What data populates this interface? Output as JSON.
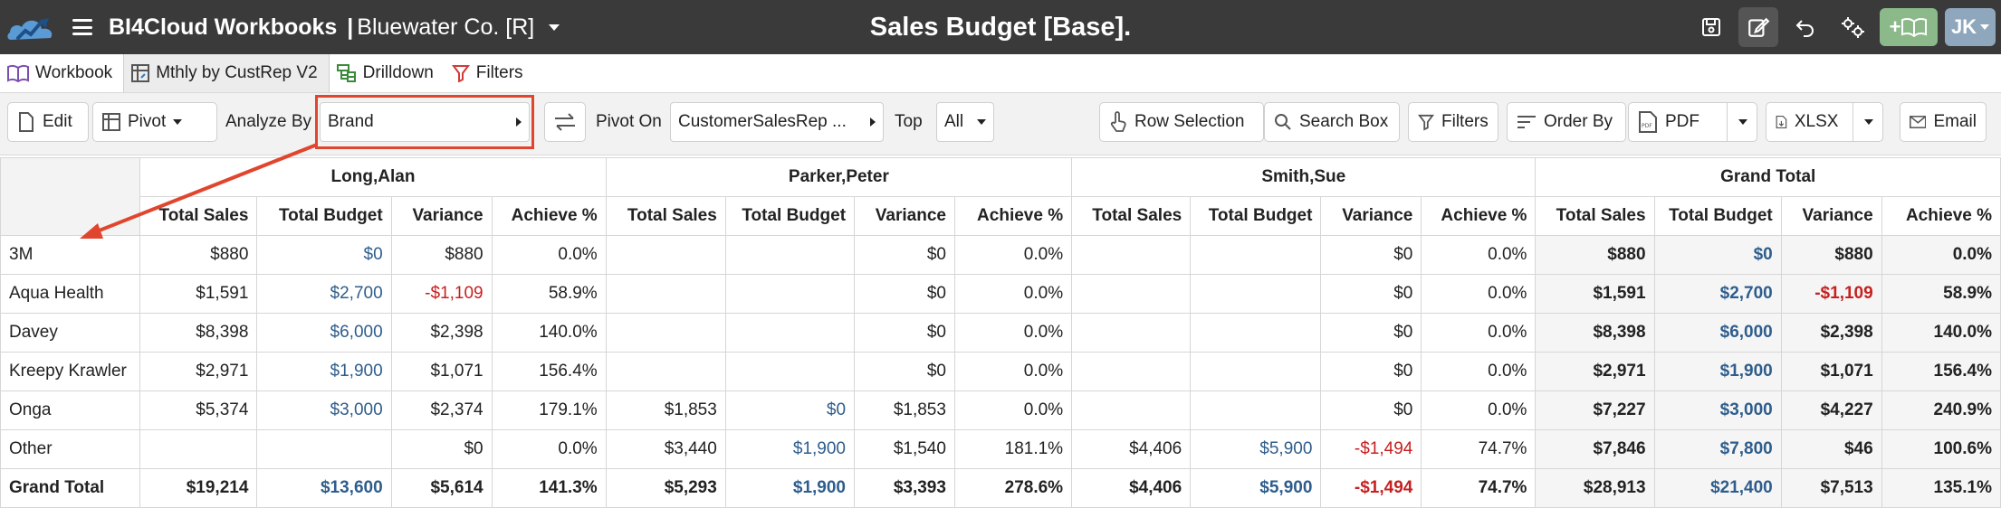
{
  "app": {
    "name": "BI4Cloud Workbooks",
    "separator": "|",
    "company": "Bluewater Co. [R]",
    "page_title": "Sales Budget [Base].",
    "add_workbook_label": "+",
    "user_initials": "JK"
  },
  "tabs": [
    {
      "label": "Workbook",
      "icon": "book-icon"
    },
    {
      "label": "Mthly by CustRep V2",
      "icon": "pivot-icon"
    },
    {
      "label": "Drilldown",
      "icon": "drilldown-icon"
    },
    {
      "label": "Filters",
      "icon": "filter-icon"
    }
  ],
  "toolbar": {
    "edit_label": "Edit",
    "pivot_label": "Pivot",
    "analyze_by_label": "Analyze By",
    "analyze_by_value": "Brand",
    "pivot_on_label": "Pivot On",
    "pivot_on_value": "CustomerSalesRep ...",
    "top_label": "Top",
    "top_value": "All",
    "row_selection_label": "Row Selection",
    "search_box_label": "Search Box",
    "filters_label": "Filters",
    "order_by_label": "Order By",
    "pdf_label": "PDF",
    "xlsx_label": "XLSX",
    "email_label": "Email"
  },
  "colors": {
    "topbar": "#3a3a3a",
    "accent_red": "#e0462e",
    "budget_blue": "#2e5d8c",
    "negative_red": "#c62020",
    "green_button": "#8cb98a",
    "user_button": "#8fa7bd"
  },
  "table": {
    "groups": [
      "Long,Alan",
      "Parker,Peter",
      "Smith,Sue",
      "Grand Total"
    ],
    "columns": [
      "Total Sales",
      "Total Budget",
      "Variance",
      "Achieve %"
    ],
    "rows": [
      {
        "label": "3M",
        "cells": [
          "$880",
          "$0",
          "$880",
          "0.0%",
          "",
          "",
          "$0",
          "0.0%",
          "",
          "",
          "$0",
          "0.0%",
          "$880",
          "$0",
          "$880",
          "0.0%"
        ]
      },
      {
        "label": "Aqua Health",
        "cells": [
          "$1,591",
          "$2,700",
          "-$1,109",
          "58.9%",
          "",
          "",
          "$0",
          "0.0%",
          "",
          "",
          "$0",
          "0.0%",
          "$1,591",
          "$2,700",
          "-$1,109",
          "58.9%"
        ]
      },
      {
        "label": "Davey",
        "cells": [
          "$8,398",
          "$6,000",
          "$2,398",
          "140.0%",
          "",
          "",
          "$0",
          "0.0%",
          "",
          "",
          "$0",
          "0.0%",
          "$8,398",
          "$6,000",
          "$2,398",
          "140.0%"
        ]
      },
      {
        "label": "Kreepy Krawler",
        "cells": [
          "$2,971",
          "$1,900",
          "$1,071",
          "156.4%",
          "",
          "",
          "$0",
          "0.0%",
          "",
          "",
          "$0",
          "0.0%",
          "$2,971",
          "$1,900",
          "$1,071",
          "156.4%"
        ]
      },
      {
        "label": "Onga",
        "cells": [
          "$5,374",
          "$3,000",
          "$2,374",
          "179.1%",
          "$1,853",
          "$0",
          "$1,853",
          "0.0%",
          "",
          "",
          "$0",
          "0.0%",
          "$7,227",
          "$3,000",
          "$4,227",
          "240.9%"
        ]
      },
      {
        "label": "Other",
        "cells": [
          "",
          "",
          "$0",
          "0.0%",
          "$3,440",
          "$1,900",
          "$1,540",
          "181.1%",
          "$4,406",
          "$5,900",
          "-$1,494",
          "74.7%",
          "$7,846",
          "$7,800",
          "$46",
          "100.6%"
        ]
      },
      {
        "label": "Grand Total",
        "cells": [
          "$19,214",
          "$13,600",
          "$5,614",
          "141.3%",
          "$5,293",
          "$1,900",
          "$3,393",
          "278.6%",
          "$4,406",
          "$5,900",
          "-$1,494",
          "74.7%",
          "$28,913",
          "$21,400",
          "$7,513",
          "135.1%"
        ]
      }
    ]
  }
}
